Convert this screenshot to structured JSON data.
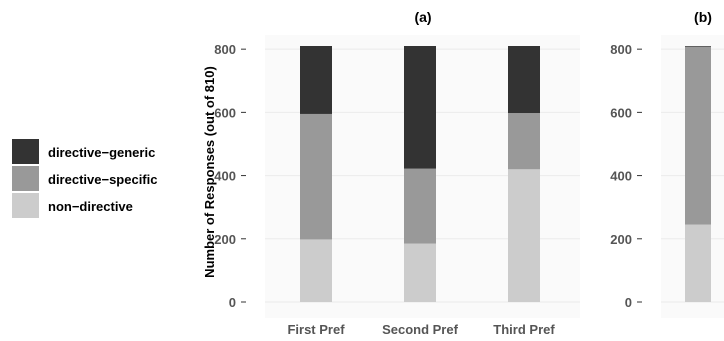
{
  "chart_data": [
    {
      "type": "bar",
      "stacked": true,
      "title": "(a)",
      "ylabel": "Number of Responses (out of 810)",
      "ylim": [
        0,
        810
      ],
      "yticks": [
        0,
        200,
        400,
        600,
        800
      ],
      "grid": true,
      "legend": "left",
      "categories": [
        "First Pref",
        "Second Pref",
        "Third Pref"
      ],
      "series": [
        {
          "name": "non−directive",
          "color": "#cccccc",
          "values": [
            198,
            185,
            420
          ]
        },
        {
          "name": "directive−specific",
          "color": "#999999",
          "values": [
            397,
            237,
            178
          ]
        },
        {
          "name": "directive−generic",
          "color": "#333333",
          "values": [
            215,
            388,
            212
          ]
        }
      ]
    },
    {
      "type": "bar",
      "stacked": true,
      "title": "(b)",
      "ylim": [
        0,
        810
      ],
      "yticks": [
        0,
        200,
        400,
        600,
        800
      ],
      "grid": true,
      "categories": [
        ""
      ],
      "series": [
        {
          "name": "non−directive",
          "color": "#cccccc",
          "values": [
            245
          ]
        },
        {
          "name": "directive−specific",
          "color": "#999999",
          "values": [
            563
          ]
        },
        {
          "name": "directive−generic",
          "color": "#333333",
          "values": [
            2
          ]
        }
      ]
    }
  ],
  "legend": {
    "items": [
      {
        "label": "directive−generic",
        "color": "#333333"
      },
      {
        "label": "directive−specific",
        "color": "#999999"
      },
      {
        "label": "non−directive",
        "color": "#cccccc"
      }
    ]
  }
}
